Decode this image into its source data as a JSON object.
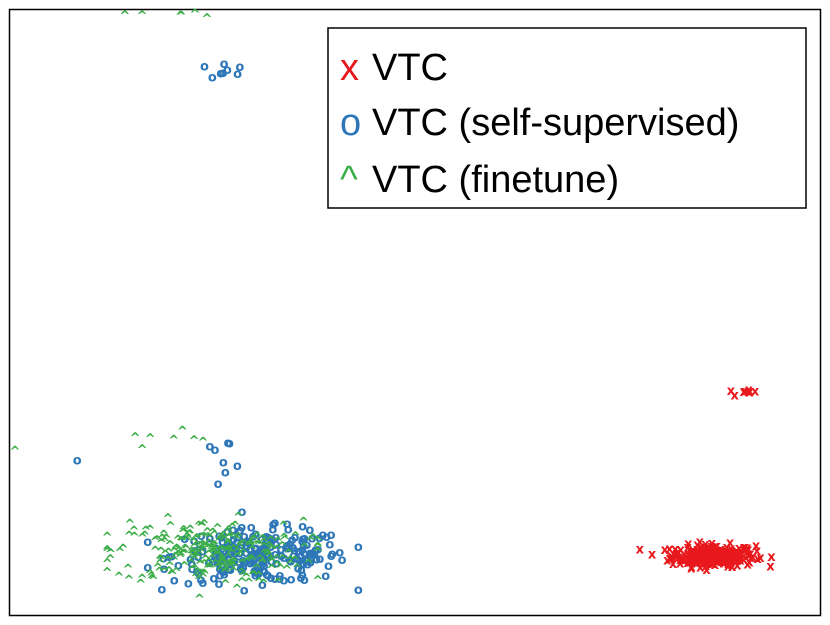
{
  "chart_data": {
    "type": "scatter",
    "title": "",
    "xlabel": "",
    "ylabel": "",
    "xlim": [
      0,
      100
    ],
    "ylim": [
      0,
      100
    ],
    "grid": false,
    "axis_ticks": false,
    "legend_position": "top-right",
    "series": [
      {
        "name": "VTC",
        "marker": "x",
        "color": "#e8181c",
        "clusters": [
          {
            "cx": 86.8,
            "cy": 9.8,
            "sx": 2.6,
            "sy": 0.9,
            "n": 260,
            "xmin": 76.5,
            "xmax": 96.5,
            "ymin": 6.5,
            "ymax": 14.0
          },
          {
            "cx": 90.4,
            "cy": 36.8,
            "sx": 0.9,
            "sy": 0.15,
            "n": 8
          }
        ]
      },
      {
        "name": "VTC (self-supervised)",
        "marker": "o",
        "color": "#2d77b8",
        "clusters": [
          {
            "cx": 31.0,
            "cy": 9.8,
            "sx": 5.4,
            "sy": 2.2,
            "n": 240,
            "xmin": 17.0,
            "xmax": 43.0,
            "ymin": 3.0,
            "ymax": 18.0
          },
          {
            "cx": 25.5,
            "cy": 90.0,
            "sx": 2.0,
            "sy": 1.0,
            "n": 8
          },
          {
            "cx": 26.5,
            "cy": 26.5,
            "sx": 1.4,
            "sy": 1.2,
            "n": 8
          }
        ],
        "points": [
          {
            "x": 8.3,
            "y": 25.5
          }
        ]
      },
      {
        "name": "VTC (finetune)",
        "marker": "^",
        "color": "#3cae49",
        "clusters": [
          {
            "cx": 24.5,
            "cy": 10.0,
            "sx": 5.8,
            "sy": 2.6,
            "n": 280,
            "xmin": 12.0,
            "xmax": 38.0,
            "ymin": 2.0,
            "ymax": 20.0
          },
          {
            "cx": 20.0,
            "cy": 99.0,
            "sx": 3.0,
            "sy": 0.4,
            "n": 6
          },
          {
            "cx": 19.5,
            "cy": 28.5,
            "sx": 2.5,
            "sy": 1.3,
            "n": 7
          }
        ],
        "points": [
          {
            "x": 0.6,
            "y": 27.0
          }
        ]
      }
    ]
  }
}
